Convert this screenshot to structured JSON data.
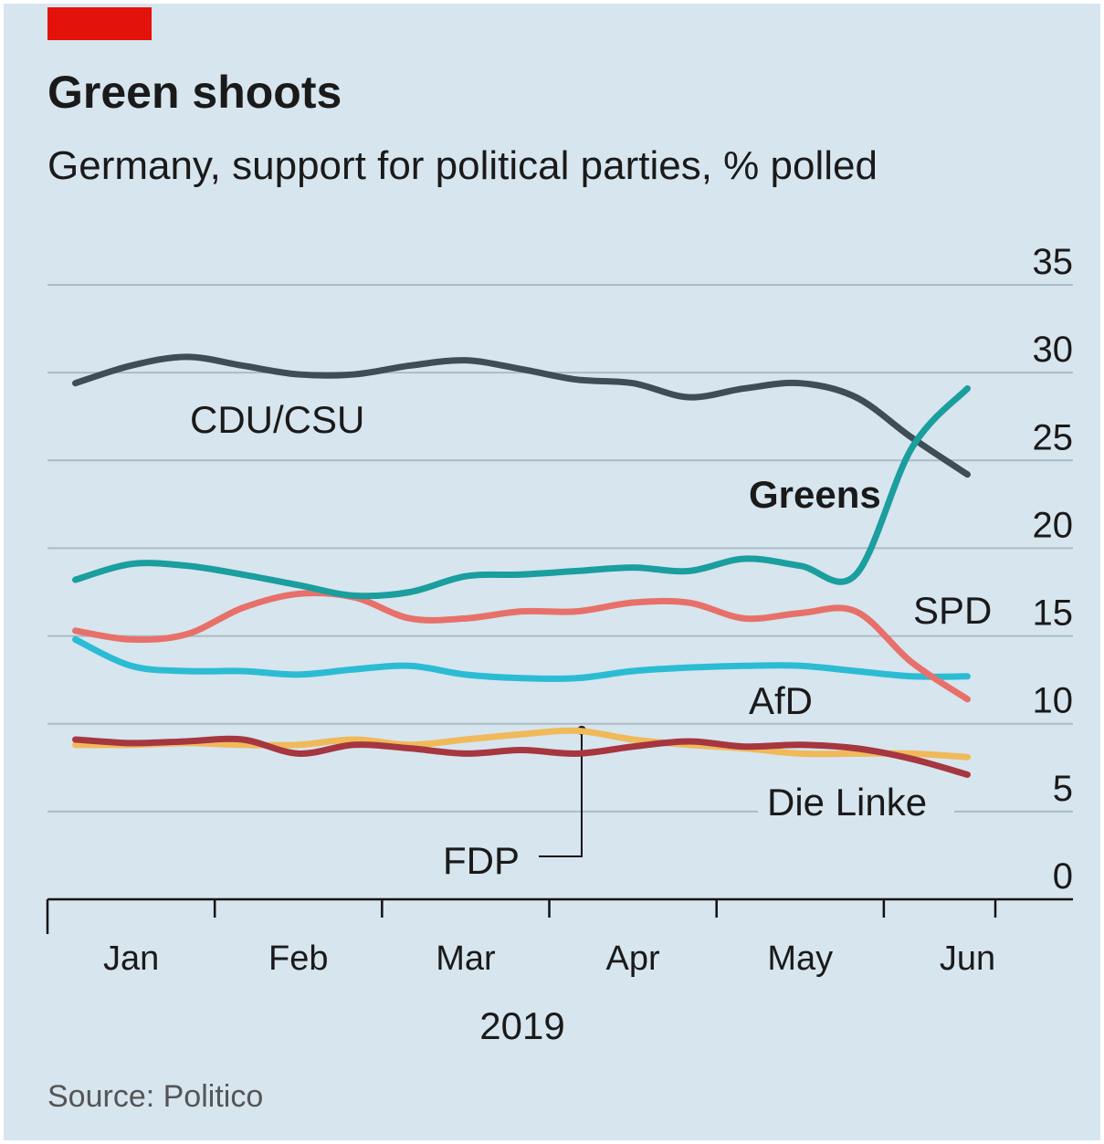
{
  "chart_data": {
    "type": "line",
    "title": "Green shoots",
    "subtitle": "Germany, support for political parties, % polled",
    "x_label": "2019",
    "source": "Source: Politico",
    "categories": [
      null,
      "Jan",
      null,
      null,
      "Feb",
      null,
      null,
      "Mar",
      null,
      null,
      "Apr",
      null,
      null,
      "May",
      null,
      null,
      "Jun"
    ],
    "series": [
      {
        "name": "CDU/CSU",
        "color": "#3f4d55",
        "values": [
          29.4,
          30.4,
          30.9,
          30.4,
          29.9,
          29.9,
          30.4,
          30.7,
          30.2,
          29.6,
          29.4,
          28.6,
          29.1,
          29.4,
          28.6,
          26.3,
          24.2
        ]
      },
      {
        "name": "Greens",
        "color": "#1a9e9e",
        "values": [
          18.2,
          19.1,
          19.0,
          18.5,
          17.9,
          17.3,
          17.5,
          18.4,
          18.5,
          18.7,
          18.9,
          18.7,
          19.4,
          19.0,
          18.5,
          25.7,
          29.1
        ]
      },
      {
        "name": "SPD",
        "color": "#e8706a",
        "values": [
          15.3,
          14.8,
          15.1,
          16.6,
          17.4,
          17.2,
          16.0,
          16.0,
          16.4,
          16.4,
          16.9,
          16.9,
          16.0,
          16.3,
          16.4,
          13.5,
          11.4
        ]
      },
      {
        "name": "AfD",
        "color": "#2bbcd4",
        "values": [
          14.8,
          13.3,
          13.0,
          13.0,
          12.8,
          13.1,
          13.3,
          12.8,
          12.6,
          12.6,
          13.0,
          13.2,
          13.3,
          13.3,
          13.0,
          12.7,
          12.7
        ]
      },
      {
        "name": "FDP",
        "color": "#f0b95a",
        "values": [
          8.8,
          8.8,
          8.9,
          8.8,
          8.8,
          9.1,
          8.8,
          9.1,
          9.4,
          9.6,
          9.1,
          8.8,
          8.6,
          8.3,
          8.3,
          8.3,
          8.1
        ]
      },
      {
        "name": "Die Linke",
        "color": "#a6363f",
        "values": [
          9.1,
          8.9,
          9.0,
          9.1,
          8.3,
          8.8,
          8.6,
          8.3,
          8.5,
          8.3,
          8.7,
          9.0,
          8.7,
          8.8,
          8.6,
          8.0,
          7.1
        ]
      }
    ],
    "ylim": [
      0,
      35
    ],
    "yticks": [
      0,
      5,
      10,
      15,
      20,
      25,
      30,
      35
    ],
    "grid": true
  }
}
